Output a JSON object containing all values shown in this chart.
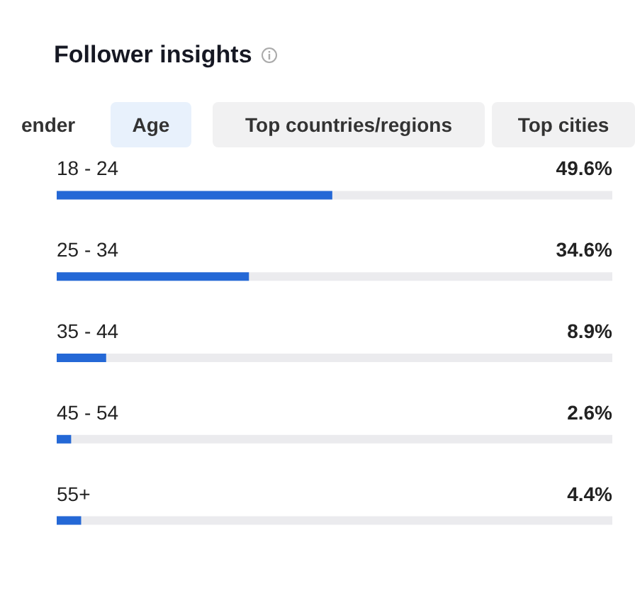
{
  "chart_data": {
    "type": "bar",
    "orientation": "horizontal",
    "title": "Follower insights",
    "annotations": [
      "ender",
      "Age",
      "Top countries/regions",
      "Top cities"
    ],
    "categories": [
      "18 - 24",
      "25 - 34",
      "35 - 44",
      "45 - 54",
      "55+"
    ],
    "values": [
      49.6,
      34.6,
      8.9,
      2.6,
      4.4
    ],
    "value_labels": [
      "49.6%",
      "34.6%",
      "8.9%",
      "2.6%",
      "4.4%"
    ],
    "color": "#2468d6",
    "xlim": [
      0,
      100
    ]
  }
}
